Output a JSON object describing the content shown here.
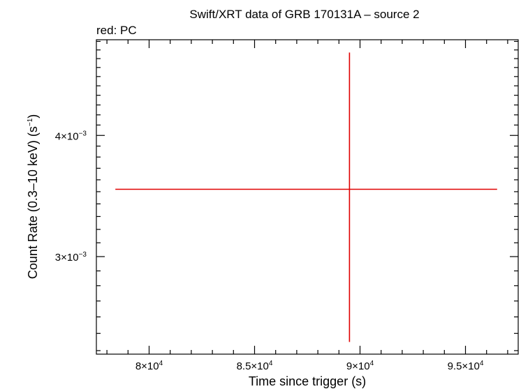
{
  "chart_data": {
    "type": "scatter",
    "title": "Swift/XRT data of GRB 170131A – source 2",
    "subtitle": "red: PC",
    "xlabel": "Time since trigger (s)",
    "ylabel": "Count Rate (0.3–10 keV) (s",
    "ylabel_sup": "−1",
    "ylabel_end": ")",
    "xlim": [
      77500,
      97500
    ],
    "ylim": [
      0.00238,
      0.00502
    ],
    "y_scale": "log",
    "grid": false,
    "x_ticks": [
      {
        "value": 80000,
        "base": "8×10",
        "exp": "4"
      },
      {
        "value": 85000,
        "base": "8.5×10",
        "exp": "4"
      },
      {
        "value": 90000,
        "base": "9×10",
        "exp": "4"
      },
      {
        "value": 95000,
        "base": "9.5×10",
        "exp": "4"
      }
    ],
    "y_ticks": [
      {
        "value": 0.003,
        "base": "3×10",
        "exp": "−3"
      },
      {
        "value": 0.004,
        "base": "4×10",
        "exp": "−3"
      }
    ],
    "series": [
      {
        "color": "#e00000",
        "points": [
          {
            "x": 89500,
            "y": 0.00352,
            "xerr_low": 78400,
            "xerr_high": 96500,
            "yerr_low": 0.00245,
            "yerr_high": 0.00487
          }
        ]
      }
    ]
  }
}
